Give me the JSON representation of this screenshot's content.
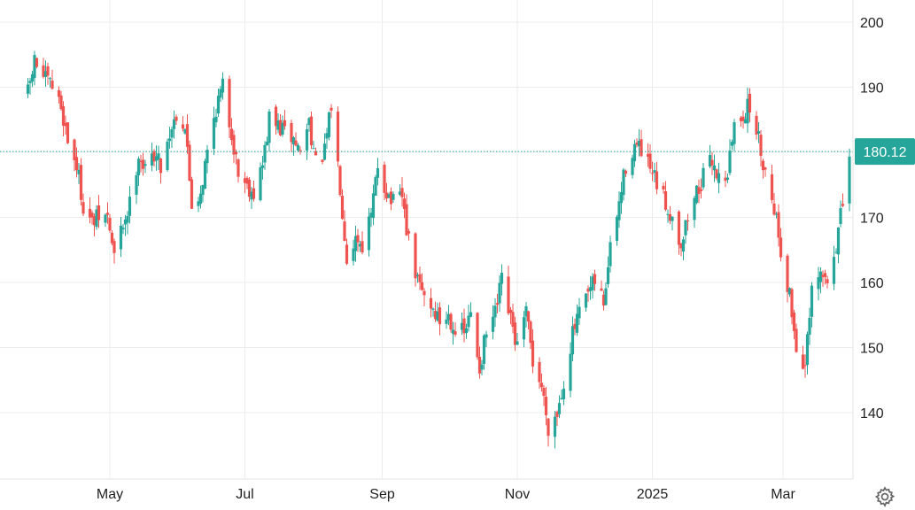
{
  "chart_data": {
    "type": "candlestick",
    "title": "",
    "xlabel": "",
    "ylabel": "",
    "ylim": [
      130,
      202
    ],
    "y_ticks": [
      140,
      150,
      160,
      170,
      180,
      190,
      200
    ],
    "x_ticks": [
      {
        "label": "May",
        "date": "2024-05-01"
      },
      {
        "label": "Jul",
        "date": "2024-07-01"
      },
      {
        "label": "Sep",
        "date": "2024-09-01"
      },
      {
        "label": "Nov",
        "date": "2024-11-01"
      },
      {
        "label": "2025",
        "date": "2025-01-01"
      },
      {
        "label": "Mar",
        "date": "2025-03-01"
      }
    ],
    "grid": true,
    "current_price": 180.12,
    "last_price_label": "180.12",
    "up_color": "#26a69a",
    "down_color": "#ef5350",
    "anchors": [
      [
        "2024-03-25",
        189
      ],
      [
        "2024-03-28",
        194
      ],
      [
        "2024-04-02",
        191
      ],
      [
        "2024-04-05",
        190
      ],
      [
        "2024-04-09",
        187
      ],
      [
        "2024-04-12",
        182
      ],
      [
        "2024-04-16",
        178
      ],
      [
        "2024-04-19",
        172
      ],
      [
        "2024-04-23",
        169
      ],
      [
        "2024-04-26",
        170
      ],
      [
        "2024-04-30",
        170
      ],
      [
        "2024-05-03",
        164
      ],
      [
        "2024-05-07",
        169
      ],
      [
        "2024-05-10",
        172
      ],
      [
        "2024-05-14",
        180
      ],
      [
        "2024-05-17",
        177
      ],
      [
        "2024-05-21",
        180
      ],
      [
        "2024-05-24",
        178
      ],
      [
        "2024-05-28",
        183
      ],
      [
        "2024-05-31",
        186
      ],
      [
        "2024-06-04",
        184
      ],
      [
        "2024-06-07",
        172
      ],
      [
        "2024-06-11",
        174
      ],
      [
        "2024-06-14",
        180
      ],
      [
        "2024-06-18",
        187
      ],
      [
        "2024-06-21",
        190
      ],
      [
        "2024-06-25",
        183
      ],
      [
        "2024-06-28",
        177
      ],
      [
        "2024-07-02",
        175
      ],
      [
        "2024-07-05",
        174
      ],
      [
        "2024-07-09",
        178
      ],
      [
        "2024-07-12",
        185
      ],
      [
        "2024-07-16",
        184
      ],
      [
        "2024-07-19",
        183
      ],
      [
        "2024-07-23",
        182
      ],
      [
        "2024-07-26",
        180
      ],
      [
        "2024-07-30",
        185
      ],
      [
        "2024-08-02",
        178
      ],
      [
        "2024-08-06",
        180
      ],
      [
        "2024-08-09",
        187
      ],
      [
        "2024-08-13",
        175
      ],
      [
        "2024-08-16",
        164
      ],
      [
        "2024-08-20",
        167
      ],
      [
        "2024-08-23",
        166
      ],
      [
        "2024-08-27",
        170
      ],
      [
        "2024-08-30",
        178
      ],
      [
        "2024-09-03",
        174
      ],
      [
        "2024-09-06",
        172
      ],
      [
        "2024-09-10",
        173
      ],
      [
        "2024-09-13",
        166
      ],
      [
        "2024-09-17",
        160
      ],
      [
        "2024-09-20",
        158
      ],
      [
        "2024-09-24",
        156
      ],
      [
        "2024-09-27",
        154
      ],
      [
        "2024-10-01",
        155
      ],
      [
        "2024-10-04",
        153
      ],
      [
        "2024-10-08",
        152
      ],
      [
        "2024-10-11",
        155
      ],
      [
        "2024-10-15",
        147
      ],
      [
        "2024-10-18",
        152
      ],
      [
        "2024-10-22",
        155
      ],
      [
        "2024-10-25",
        160
      ],
      [
        "2024-10-29",
        154
      ],
      [
        "2024-11-01",
        150
      ],
      [
        "2024-11-05",
        155
      ],
      [
        "2024-11-08",
        148
      ],
      [
        "2024-11-12",
        144
      ],
      [
        "2024-11-15",
        138
      ],
      [
        "2024-11-19",
        140
      ],
      [
        "2024-11-22",
        145
      ],
      [
        "2024-11-26",
        152
      ],
      [
        "2024-11-29",
        155
      ],
      [
        "2024-12-03",
        158
      ],
      [
        "2024-12-06",
        160
      ],
      [
        "2024-12-10",
        157
      ],
      [
        "2024-12-13",
        165
      ],
      [
        "2024-12-17",
        172
      ],
      [
        "2024-12-20",
        178
      ],
      [
        "2024-12-24",
        181
      ],
      [
        "2024-12-27",
        180
      ],
      [
        "2024-12-31",
        177
      ],
      [
        "2025-01-03",
        175
      ],
      [
        "2025-01-07",
        172
      ],
      [
        "2025-01-10",
        170
      ],
      [
        "2025-01-14",
        166
      ],
      [
        "2025-01-17",
        170
      ],
      [
        "2025-01-21",
        174
      ],
      [
        "2025-01-24",
        176
      ],
      [
        "2025-01-28",
        179
      ],
      [
        "2025-01-31",
        176
      ],
      [
        "2025-02-04",
        177
      ],
      [
        "2025-02-07",
        184
      ],
      [
        "2025-02-11",
        186
      ],
      [
        "2025-02-14",
        187
      ],
      [
        "2025-02-18",
        182
      ],
      [
        "2025-02-21",
        177
      ],
      [
        "2025-02-25",
        172
      ],
      [
        "2025-02-28",
        165
      ],
      [
        "2025-03-04",
        158
      ],
      [
        "2025-03-07",
        150
      ],
      [
        "2025-03-11",
        147
      ],
      [
        "2025-03-14",
        158
      ],
      [
        "2025-03-18",
        161
      ],
      [
        "2025-03-21",
        160
      ],
      [
        "2025-03-25",
        166
      ],
      [
        "2025-03-28",
        172
      ],
      [
        "2025-04-01",
        180
      ]
    ]
  },
  "settings_icon": "gear-icon"
}
